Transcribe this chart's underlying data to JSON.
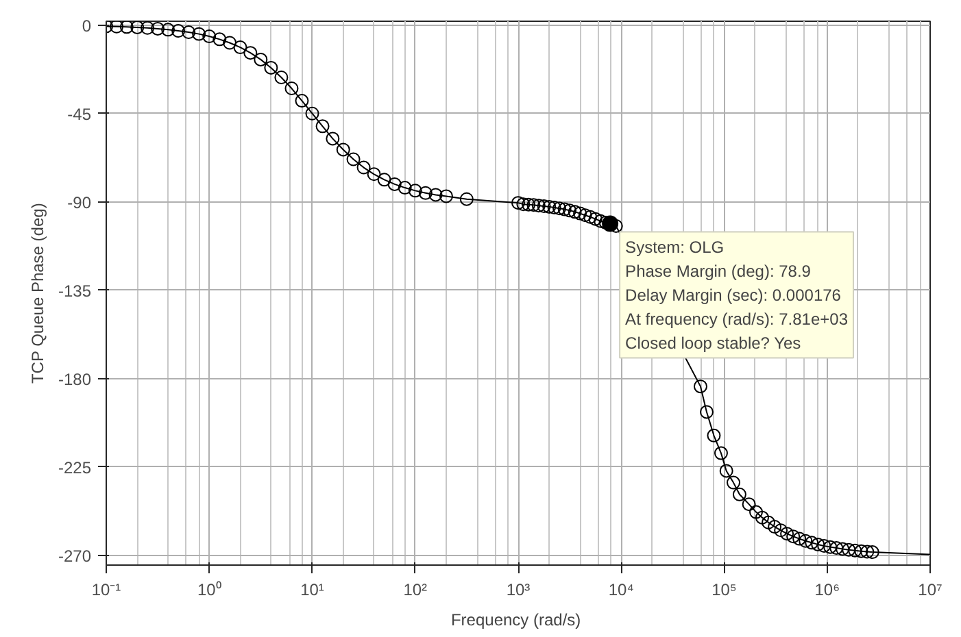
{
  "chart_data": {
    "type": "line",
    "xlabel": "Frequency  (rad/s)",
    "ylabel": "TCP Queue Phase (deg)",
    "log": "x",
    "grid": true,
    "marker": "circle",
    "line_style": "solid",
    "xlim": [
      0.1,
      10000000
    ],
    "ylim": [
      -275,
      2
    ],
    "xticks": [
      {
        "value": 0.1,
        "label": "10⁻¹"
      },
      {
        "value": 1,
        "label": "10⁰"
      },
      {
        "value": 10,
        "label": "10¹"
      },
      {
        "value": 100,
        "label": "10²"
      },
      {
        "value": 1000,
        "label": "10³"
      },
      {
        "value": 10000,
        "label": "10⁴"
      },
      {
        "value": 100000,
        "label": "10⁵"
      },
      {
        "value": 1000000,
        "label": "10⁶"
      },
      {
        "value": 10000000,
        "label": "10⁷"
      }
    ],
    "yticks": [
      0,
      -45,
      -90,
      -135,
      -180,
      -225,
      -270
    ],
    "series": [
      {
        "color": "#000000",
        "x": [
          0.1,
          0.126,
          0.158,
          0.2,
          0.251,
          0.316,
          0.398,
          0.501,
          0.631,
          0.794,
          1,
          1.26,
          1.58,
          2,
          2.51,
          3.16,
          3.98,
          5.01,
          6.31,
          7.94,
          10,
          12.6,
          15.8,
          20,
          25.1,
          31.6,
          39.8,
          50.1,
          63.1,
          79.4,
          100,
          126,
          158,
          200,
          316,
          1000,
          1120,
          1260,
          1410,
          1580,
          1780,
          2000,
          2240,
          2510,
          2820,
          3160,
          3550,
          3980,
          4470,
          5010,
          5620,
          6310,
          7080,
          7810,
          8910,
          58900,
          67600,
          79400,
          93300,
          105000,
          123000,
          141000,
          174000,
          204000,
          234000,
          269000,
          309000,
          355000,
          407000,
          468000,
          537000,
          617000,
          708000,
          813000,
          933000,
          1070000,
          1230000,
          1410000,
          1620000,
          1860000,
          2140000,
          2450000,
          2750000
        ],
        "values": [
          -0.6,
          -0.7,
          -0.9,
          -1.1,
          -1.4,
          -1.8,
          -2.3,
          -2.9,
          -3.6,
          -4.5,
          -5.7,
          -7.2,
          -9.0,
          -11.3,
          -14.1,
          -17.5,
          -21.7,
          -26.6,
          -32.2,
          -38.5,
          -45,
          -51.5,
          -57.8,
          -63.4,
          -68.3,
          -72.5,
          -75.9,
          -78.7,
          -81.0,
          -82.8,
          -84.3,
          -85.5,
          -86.4,
          -87.1,
          -88.6,
          -90.5,
          -91.2,
          -91.4,
          -91.6,
          -91.9,
          -92.2,
          -92.5,
          -92.9,
          -93.3,
          -93.8,
          -94.4,
          -95.1,
          -95.9,
          -96.8,
          -97.7,
          -98.7,
          -99.8,
          -100.6,
          -101.1,
          -102.3,
          -184,
          -197,
          -209,
          -218,
          -227,
          -233,
          -239,
          -244,
          -248,
          -250.8,
          -253.3,
          -255.5,
          -257.3,
          -259.0,
          -260.4,
          -261.6,
          -262.7,
          -263.6,
          -264.5,
          -265.2,
          -265.8,
          -266.3,
          -266.8,
          -267.2,
          -267.6,
          -267.9,
          -268.2,
          -268.4
        ]
      },
      {
        "color": "#000000",
        "marker": "none",
        "x": [
          2750000,
          10000000
        ],
        "values": [
          -268.4,
          -269.6
        ]
      }
    ],
    "annotations": [
      {
        "text": "System: OLG\nPhase Margin (deg): 78.9\nDelay Margin (sec): 0.000176\nAt frequency (rad/s): 7.81e+03\nClosed loop stable? Yes",
        "x": 7810,
        "y": -101.1
      }
    ]
  }
}
